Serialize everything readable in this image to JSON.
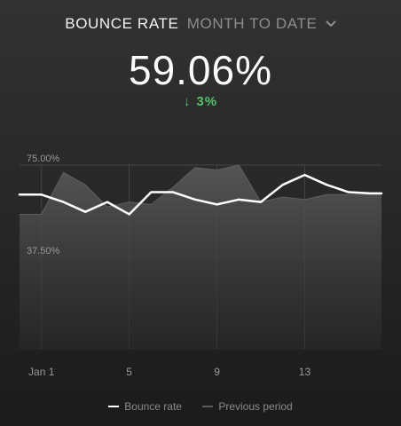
{
  "header": {
    "metric_label": "BOUNCE RATE",
    "period_label": "MONTH TO DATE",
    "dropdown_icon": "chevron-down-icon"
  },
  "summary": {
    "value": "59.06%",
    "delta_arrow": "↓",
    "delta": "3%",
    "delta_color": "#53c26a"
  },
  "legend": {
    "current": "Bounce rate",
    "previous": "Previous period"
  },
  "colors": {
    "current_line": "#ffffff",
    "previous_area": "#4a4a4a",
    "grid": "#444444"
  },
  "chart_data": {
    "type": "line",
    "x": [
      0,
      1,
      2,
      3,
      4,
      5,
      6,
      7,
      8,
      9,
      10,
      11,
      12,
      13,
      14,
      15,
      16
    ],
    "x_ticks": [
      {
        "x": 1,
        "label": "Jan 1"
      },
      {
        "x": 5,
        "label": "5"
      },
      {
        "x": 9,
        "label": "9"
      },
      {
        "x": 13,
        "label": "13"
      }
    ],
    "y_ticks": [
      {
        "y": 75,
        "label": "75.00%"
      },
      {
        "y": 37.5,
        "label": "37.50%"
      }
    ],
    "ylim": [
      0,
      86
    ],
    "xlim": [
      0,
      16.5
    ],
    "grid": true,
    "legend_position": "bottom",
    "series": [
      {
        "name": "Bounce rate",
        "role": "current",
        "values": [
          63,
          63,
          60,
          56,
          60,
          55,
          64,
          64,
          61,
          59,
          61,
          60,
          67,
          71,
          67,
          64,
          63.5
        ]
      },
      {
        "name": "Previous period",
        "role": "previous",
        "values": [
          55,
          55,
          72,
          67,
          58,
          60,
          59,
          66,
          74,
          73,
          75,
          60,
          62,
          61,
          63,
          63,
          63
        ]
      }
    ]
  }
}
